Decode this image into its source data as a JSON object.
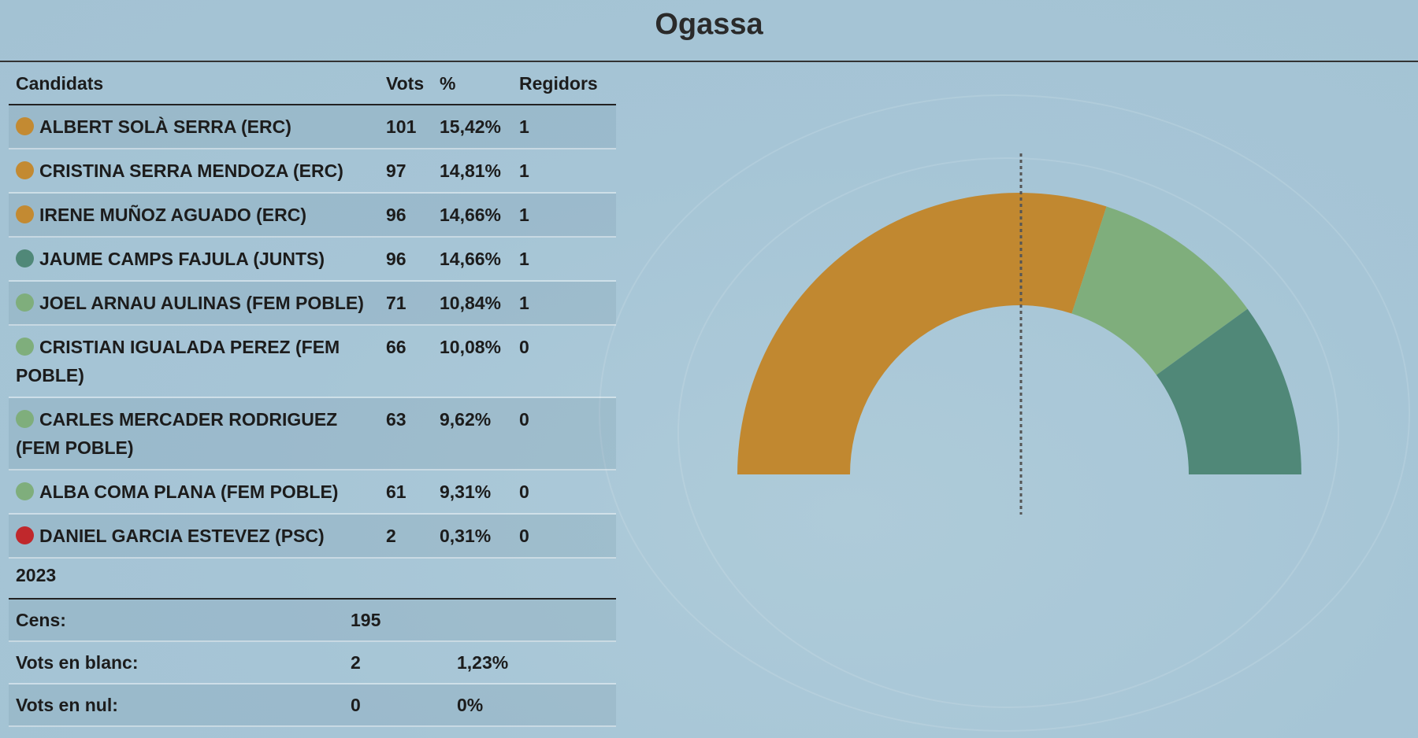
{
  "title": "Ogassa",
  "table": {
    "headers": {
      "name": "Candidats",
      "votes": "Vots",
      "pct": "%",
      "seats": "Regidors"
    },
    "rows": [
      {
        "name": "ALBERT SOLÀ SERRA (ERC)",
        "votes": "101",
        "pct": "15,42%",
        "seats": "1",
        "color": "#c38a32"
      },
      {
        "name": "CRISTINA SERRA MENDOZA (ERC)",
        "votes": "97",
        "pct": "14,81%",
        "seats": "1",
        "color": "#c38a32"
      },
      {
        "name": "IRENE MUÑOZ AGUADO (ERC)",
        "votes": "96",
        "pct": "14,66%",
        "seats": "1",
        "color": "#c38a32"
      },
      {
        "name": "JAUME CAMPS FAJULA (JUNTS)",
        "votes": "96",
        "pct": "14,66%",
        "seats": "1",
        "color": "#508878"
      },
      {
        "name": "JOEL ARNAU AULINAS (FEM POBLE)",
        "votes": "71",
        "pct": "10,84%",
        "seats": "1",
        "color": "#7fae7c"
      },
      {
        "name": "CRISTIAN IGUALADA PEREZ (FEM POBLE)",
        "votes": "66",
        "pct": "10,08%",
        "seats": "0",
        "color": "#7fae7c"
      },
      {
        "name": "CARLES MERCADER RODRIGUEZ (FEM POBLE)",
        "votes": "63",
        "pct": "9,62%",
        "seats": "0",
        "color": "#7fae7c"
      },
      {
        "name": "ALBA COMA PLANA (FEM POBLE)",
        "votes": "61",
        "pct": "9,31%",
        "seats": "0",
        "color": "#7fae7c"
      },
      {
        "name": "DANIEL GARCIA ESTEVEZ (PSC)",
        "votes": "2",
        "pct": "0,31%",
        "seats": "0",
        "color": "#c0282c"
      }
    ]
  },
  "summary": {
    "year": "2023",
    "rows": [
      {
        "label": "Cens:",
        "value": "195",
        "pct": ""
      },
      {
        "label": "Vots en blanc:",
        "value": "2",
        "pct": "1,23%"
      },
      {
        "label": "Vots en nul:",
        "value": "0",
        "pct": "0%"
      }
    ]
  },
  "chart_data": {
    "type": "pie",
    "subtype": "semicircle-hemicycle",
    "title": "",
    "majority_line": true,
    "total_seats": 5,
    "series": [
      {
        "name": "ERC",
        "seats": 3,
        "color": "#c18830"
      },
      {
        "name": "FEM POBLE",
        "seats": 1,
        "color": "#7fae7c"
      },
      {
        "name": "JUNTS",
        "seats": 1,
        "color": "#508878"
      }
    ]
  }
}
